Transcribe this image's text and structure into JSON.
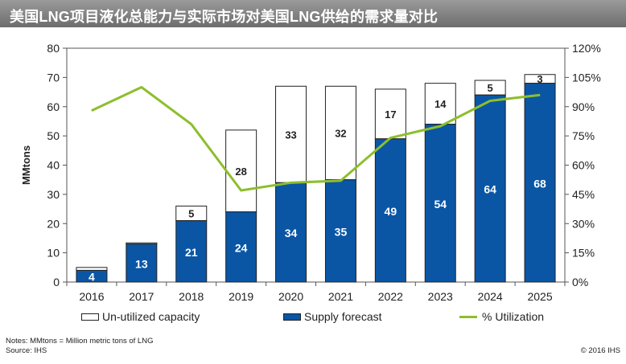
{
  "title": "美国LNG项目液化总能力与实际市场对美国LNG供给的需求量对比",
  "notes": "Notes: MMtons = Million metric tons of LNG",
  "source": "Source: IHS",
  "copyright": "© 2016 IHS",
  "colors": {
    "supply": "#0a56a5",
    "unutilized": "#ffffff",
    "utilization": "#8dbe2d",
    "title_bg": "#7f7f7f"
  },
  "chart_data": {
    "type": "bar",
    "stacked": true,
    "title": "美国LNG项目液化总能力与实际市场对美国LNG供给的需求量对比",
    "ylabel": "MMtons",
    "ylabel_right": "",
    "categories": [
      "2016",
      "2017",
      "2018",
      "2019",
      "2020",
      "2021",
      "2022",
      "2023",
      "2024",
      "2025"
    ],
    "ylim": [
      0,
      80
    ],
    "y2lim": [
      0,
      120
    ],
    "yticks": [
      "0",
      "10",
      "20",
      "30",
      "40",
      "50",
      "60",
      "70",
      "80"
    ],
    "y2ticks": [
      "0%",
      "15%",
      "30%",
      "45%",
      "60%",
      "75%",
      "90%",
      "105%",
      "120%"
    ],
    "series": [
      {
        "name": "Supply forecast",
        "values": [
          4,
          13,
          21,
          24,
          34,
          35,
          49,
          54,
          64,
          68
        ],
        "labels": [
          "4",
          "13",
          "21",
          "24",
          "34",
          "35",
          "49",
          "54",
          "64",
          "68"
        ]
      },
      {
        "name": "Un-utilized capacity",
        "values": [
          1,
          0.4,
          5,
          28,
          33,
          32,
          17,
          14,
          5,
          3
        ],
        "labels": [
          "",
          "",
          "5",
          "28",
          "33",
          "32",
          "17",
          "14",
          "5",
          "3"
        ]
      },
      {
        "name": "% Utilization",
        "axis": "right",
        "values": [
          88,
          100,
          81,
          47,
          51,
          52,
          74,
          80,
          93,
          96
        ]
      }
    ],
    "legend": [
      "Un-utilized capacity",
      "Supply forecast",
      "% Utilization"
    ],
    "legend_position": "bottom",
    "grid": false
  }
}
